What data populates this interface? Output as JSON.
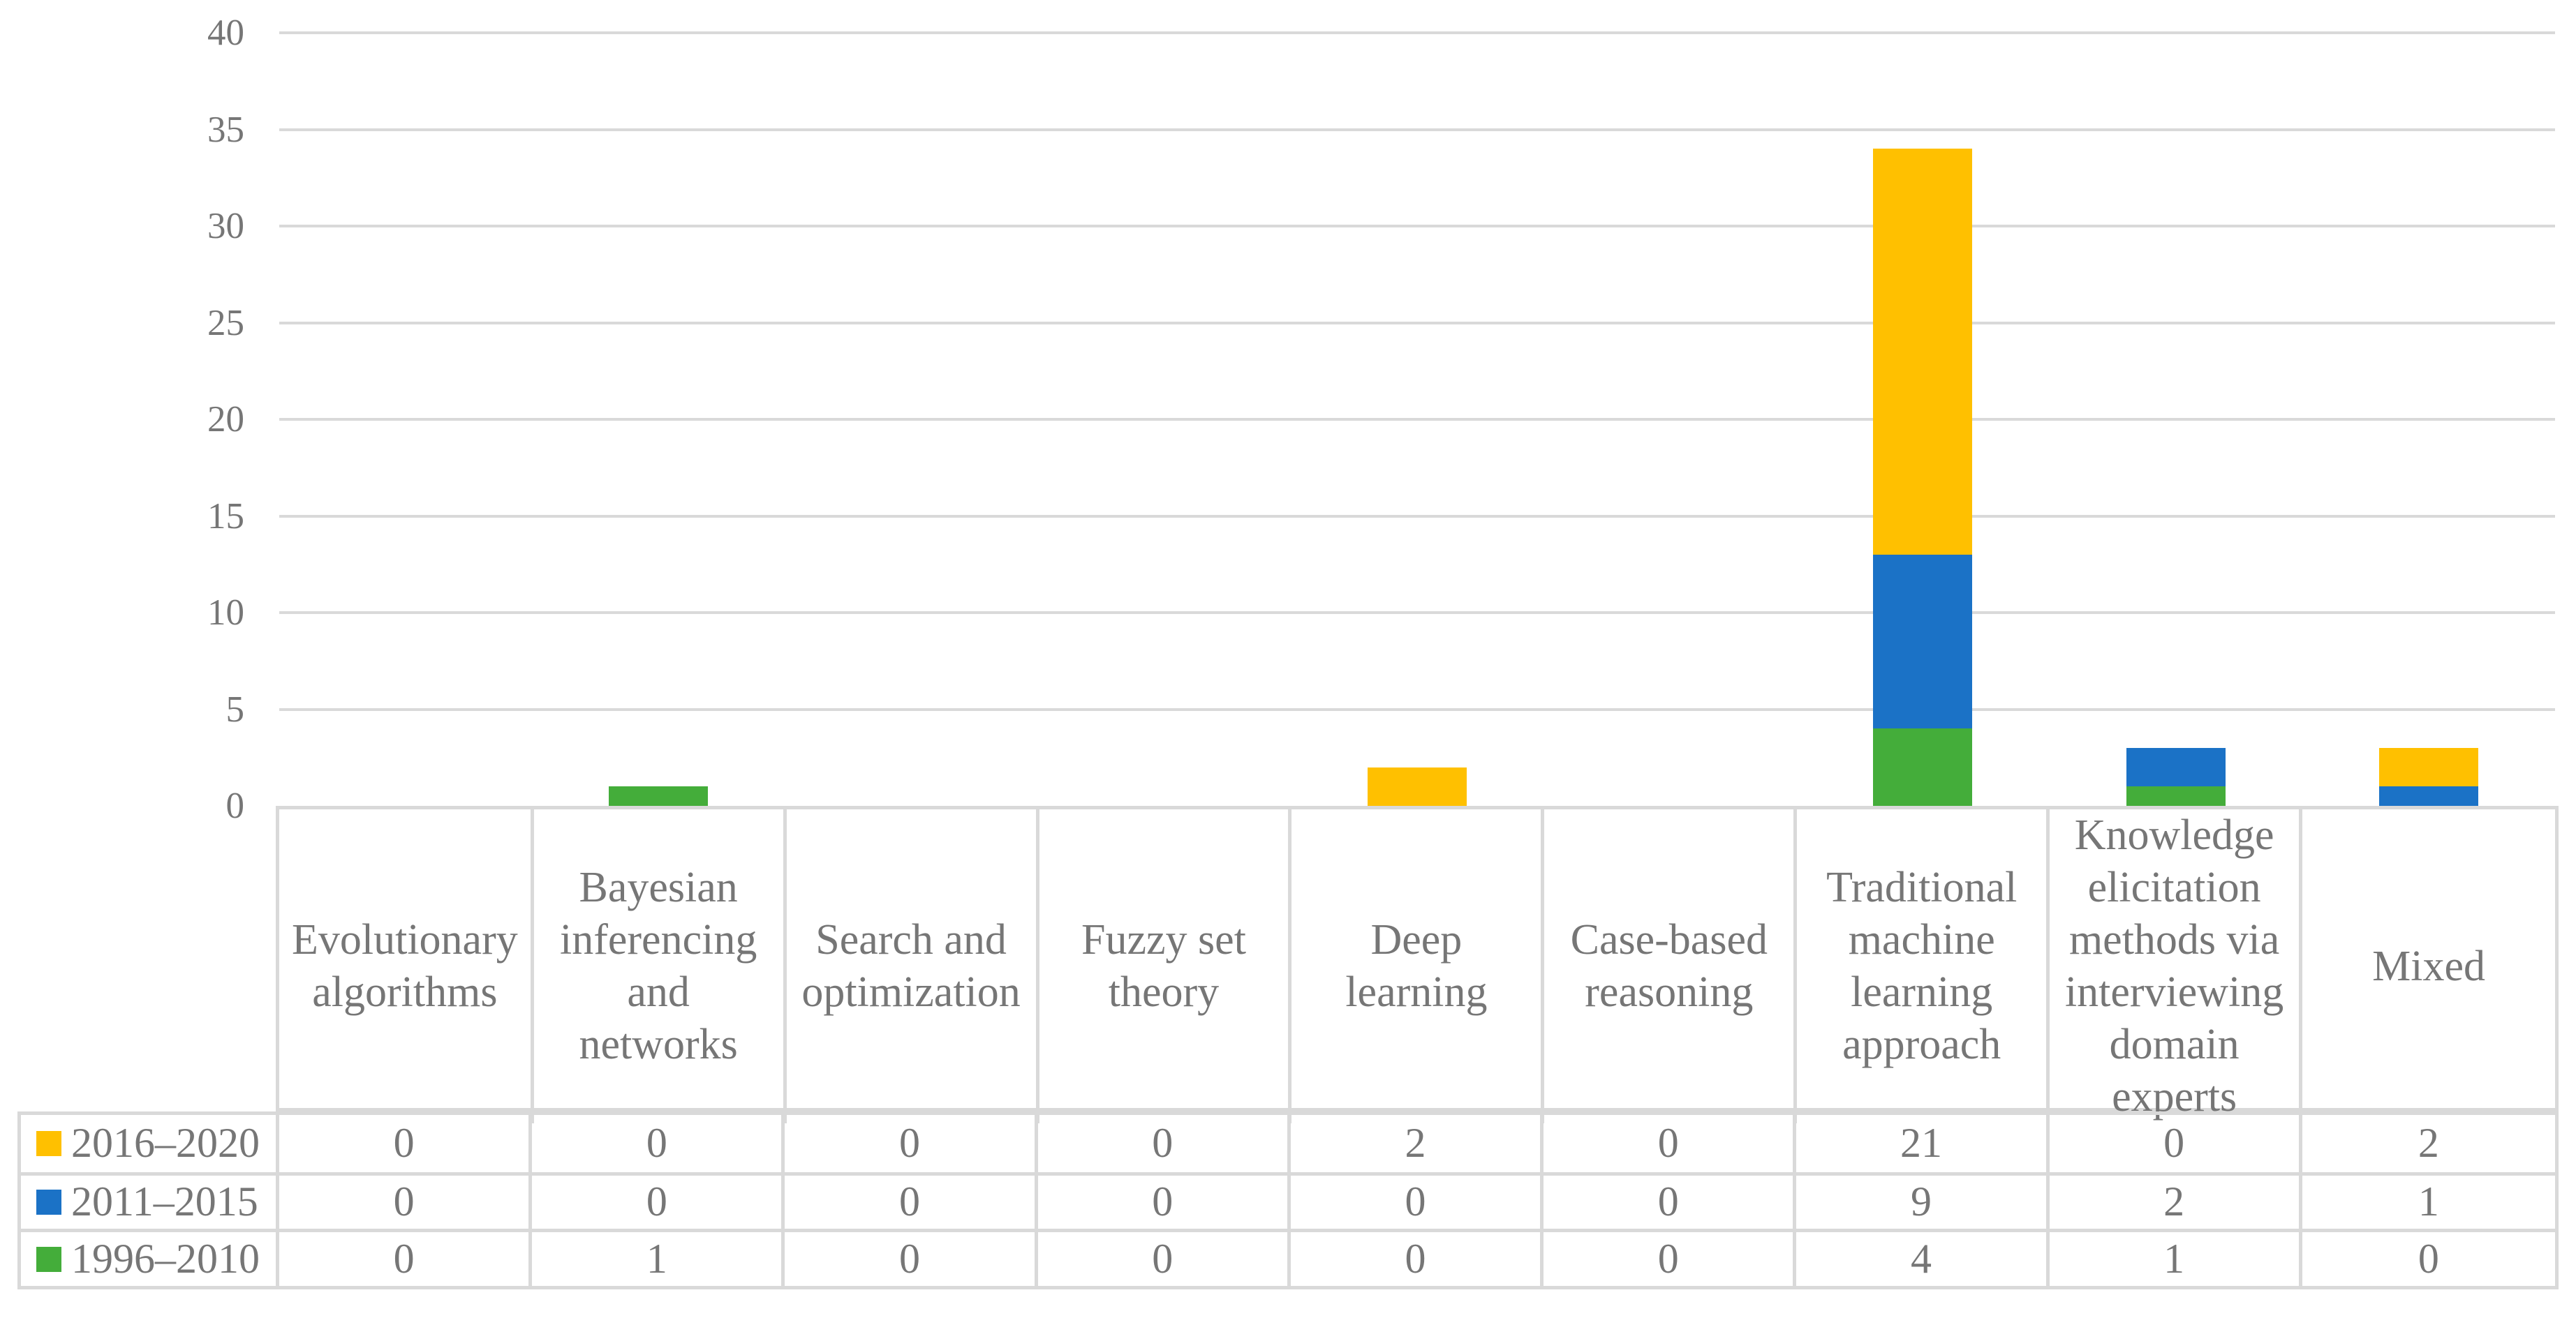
{
  "figure": {
    "kind": "stacked-column-chart-with-data-table",
    "background": "#FFFFFF",
    "text_color": "#767676",
    "gridline_color": "#D9D9D9",
    "table_border_color": "#D9D9D9"
  },
  "chart_data": {
    "type": "bar",
    "stacked": true,
    "title": "",
    "xlabel": "",
    "ylabel": "",
    "ylim": [
      0,
      40
    ],
    "y_ticks": [
      40,
      35,
      30,
      25,
      20,
      15,
      10,
      5,
      0
    ],
    "grid": "horizontal",
    "legend_position": "left-column-of-data-table",
    "categories": [
      "Evolutionary algorithms",
      "Bayesian inferencing and networks",
      "Search and optimization",
      "Fuzzy set theory",
      "Deep learning",
      "Case-based reasoning",
      "Traditional machine learning approach",
      "Knowledge elicitation methods via interviewing domain experts",
      "Mixed"
    ],
    "series": [
      {
        "name": "2016–2020",
        "color": "#FFC000",
        "values": [
          0,
          0,
          0,
          0,
          2,
          0,
          21,
          0,
          2
        ]
      },
      {
        "name": "2011–2015",
        "color": "#1B72C6",
        "values": [
          0,
          0,
          0,
          0,
          0,
          0,
          9,
          2,
          1
        ]
      },
      {
        "name": "1996–2010",
        "color": "#44AD3A",
        "values": [
          0,
          1,
          0,
          0,
          0,
          0,
          4,
          1,
          0
        ]
      }
    ],
    "stack_order_bottom_to_top": [
      "1996–2010",
      "2011–2015",
      "2016–2020"
    ],
    "table_rows_top_to_bottom": [
      "2016–2020",
      "2011–2015",
      "1996–2010"
    ]
  }
}
